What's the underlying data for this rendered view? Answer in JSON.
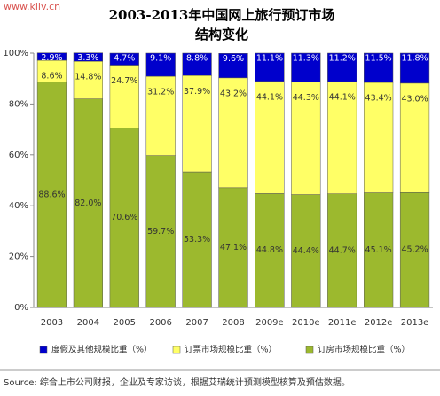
{
  "watermark": "www.kllv.cn",
  "chart_data": {
    "type": "stacked-bar",
    "title": "2003-2013年中国网上旅行预订市场",
    "subtitle": "结构变化",
    "categories": [
      "2003",
      "2004",
      "2005",
      "2006",
      "2007",
      "2008",
      "2009e",
      "2010e",
      "2011e",
      "2012e",
      "2013e"
    ],
    "series": [
      {
        "name": "订房市场规模比重（%）",
        "color": "#9cb92e",
        "label_color": "#333333",
        "values": [
          88.6,
          82.0,
          70.6,
          59.7,
          53.3,
          47.1,
          44.8,
          44.4,
          44.7,
          45.1,
          45.2
        ],
        "value_labels": [
          "88.6%",
          "82.0%",
          "70.6%",
          "59.7%",
          "53.3%",
          "47.1%",
          "44.8%",
          "44.4%",
          "44.7%",
          "45.1%",
          "45.2%"
        ]
      },
      {
        "name": "订票市场规模比重（%）",
        "color": "#ffff66",
        "label_color": "#333333",
        "values": [
          8.6,
          14.8,
          24.7,
          31.2,
          37.9,
          43.2,
          44.1,
          44.3,
          44.1,
          43.4,
          43.0
        ],
        "value_labels": [
          "8.6%",
          "14.8%",
          "24.7%",
          "31.2%",
          "37.9%",
          "43.2%",
          "44.1%",
          "44.3%",
          "44.1%",
          "43.4%",
          "43.0%"
        ]
      },
      {
        "name": "度假及其他规模比重（%）",
        "color": "#0000cc",
        "label_color": "#ffffff",
        "values": [
          2.9,
          3.3,
          4.7,
          9.1,
          8.8,
          9.6,
          11.1,
          11.3,
          11.2,
          11.5,
          11.8
        ],
        "value_labels": [
          "2.9%",
          "3.3%",
          "4.7%",
          "9.1%",
          "8.8%",
          "9.6%",
          "11.1%",
          "11.3%",
          "11.2%",
          "11.5%",
          "11.8%"
        ]
      }
    ],
    "legend_order": [
      2,
      1,
      0
    ],
    "ylim": [
      0,
      100
    ],
    "yticks": [
      {
        "value": 0,
        "label": "0%"
      },
      {
        "value": 20,
        "label": "20%"
      },
      {
        "value": 40,
        "label": "40%"
      },
      {
        "value": 60,
        "label": "60%"
      },
      {
        "value": 80,
        "label": "80%"
      },
      {
        "value": 100,
        "label": "100%"
      }
    ],
    "source": "Source: 综合上市公司财报，企业及专家访谈，根据艾瑞统计预测模型核算及预估数据。"
  }
}
